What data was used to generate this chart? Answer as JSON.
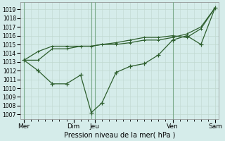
{
  "xlabel": "Pression niveau de la mer( hPa )",
  "bg_color": "#d5ecea",
  "grid_color": "#b8d8d8",
  "line_color": "#2d5e2d",
  "ylim": [
    1006.5,
    1019.8
  ],
  "yticks": [
    1007,
    1008,
    1009,
    1010,
    1011,
    1012,
    1013,
    1014,
    1015,
    1016,
    1017,
    1018,
    1019
  ],
  "xlim": [
    0,
    28
  ],
  "x_day_positions": [
    0.5,
    7.5,
    10.5,
    21.5,
    27.5
  ],
  "x_day_labels": [
    "Mer",
    "Dim",
    "Jeu",
    "Ven",
    "Sam"
  ],
  "x_vline_positions": [
    0.5,
    10.0,
    10.5,
    21.5
  ],
  "series1_x": [
    0.5,
    2.5,
    4.5,
    6.5,
    8.5,
    10.0,
    11.5,
    13.5,
    15.5,
    17.5,
    19.5,
    21.5,
    23.5,
    25.5,
    27.5
  ],
  "series1_y": [
    1013.2,
    1012.0,
    1010.5,
    1010.5,
    1011.5,
    1007.2,
    1008.3,
    1011.8,
    1012.5,
    1012.8,
    1013.8,
    1015.5,
    1016.0,
    1015.0,
    1019.2
  ],
  "series2_x": [
    0.5,
    2.5,
    4.5,
    6.5,
    8.5,
    10.0,
    11.5,
    13.5,
    15.5,
    17.5,
    19.5,
    21.5,
    23.5,
    25.5,
    27.5
  ],
  "series2_y": [
    1013.2,
    1013.2,
    1014.5,
    1014.5,
    1014.8,
    1014.8,
    1015.0,
    1015.0,
    1015.2,
    1015.5,
    1015.5,
    1015.8,
    1016.2,
    1017.0,
    1019.2
  ],
  "series3_x": [
    0.5,
    2.5,
    4.5,
    6.5,
    8.5,
    10.0,
    11.5,
    13.5,
    15.5,
    17.5,
    19.5,
    21.5,
    23.5,
    25.5,
    27.5
  ],
  "series3_y": [
    1013.2,
    1014.2,
    1014.8,
    1014.8,
    1014.8,
    1014.8,
    1015.0,
    1015.2,
    1015.5,
    1015.8,
    1015.8,
    1016.0,
    1015.8,
    1016.8,
    1019.2
  ]
}
